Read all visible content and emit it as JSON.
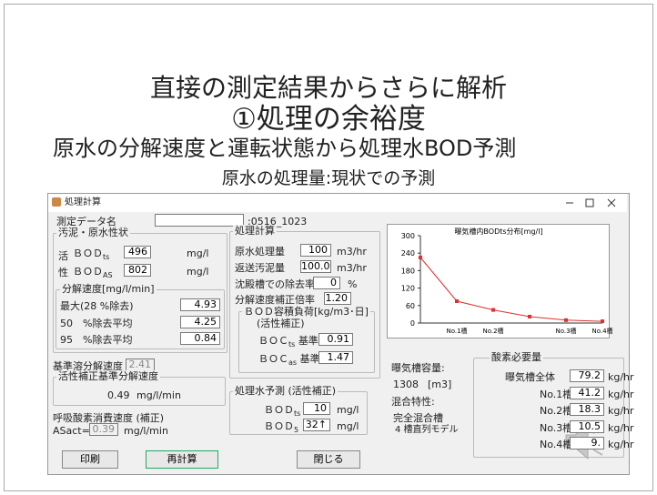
{
  "slide": {
    "title1": "直接の測定結果からさらに解析",
    "title2": "①処理の余裕度",
    "subtitle": "原水の分解速度と運転状態から処理水BOD予測",
    "caption": "原水の処理量:現状での予測"
  },
  "window": {
    "title": "処理計算",
    "data_name": {
      "label": "測定データ名",
      "value": ":0516_1023"
    },
    "sludge": {
      "title": "汚泥・原水性状",
      "side1": "活",
      "side2": "性",
      "rows": [
        {
          "main": "ＢＯＤ",
          "sub": "ts",
          "value": "496",
          "unit": "mg/l"
        },
        {
          "main": "ＢＯＤ",
          "sub": "AS",
          "value": "802",
          "unit": "mg/l"
        }
      ],
      "rate": {
        "title": "分解速度[mg/l/min]",
        "rows": [
          {
            "label": "最大(28 %除去)",
            "value": "4.93"
          },
          {
            "label": "50　%除去平均",
            "value": "4.25"
          },
          {
            "label": "95　%除去平均",
            "value": "0.84"
          }
        ]
      }
    },
    "base_rate": {
      "label": "基準溶分解速度",
      "value": "2.41"
    },
    "active_rate": {
      "title": "活性補正基準分解速度",
      "value": "0.49",
      "unit": "mg/l/min"
    },
    "oxygen_rate": {
      "label": "呼吸酸素消費速度 (補正)",
      "key": "ASact=",
      "value": "0.39",
      "unit": "mg/l/min"
    },
    "calc": {
      "title": "処理計算",
      "rows": [
        {
          "label": "原水処理量",
          "value": "100",
          "unit": "m3/hr"
        },
        {
          "label": "返送汚泥量",
          "value": "100.0",
          "unit": "m3/hr"
        },
        {
          "label": "沈殿槽での除去率",
          "value": "0",
          "unit": "%"
        },
        {
          "label": "分解速度補正倍率",
          "value": "1.20"
        }
      ],
      "load": {
        "title": "ＢＯＤ容積負荷[kg/m3･日]",
        "note": "(活性補正)",
        "rows": [
          {
            "main": "ＢＯＣ",
            "sub": "ts",
            "tail": "基準",
            "value": "0.91"
          },
          {
            "main": "ＢＯＣ",
            "sub": "as",
            "tail": "基準",
            "value": "1.47"
          }
        ]
      }
    },
    "predict": {
      "title": "処理水予測 (活性補正)",
      "rows": [
        {
          "main": "ＢＯＤ",
          "sub": "ts",
          "value": "10",
          "unit": "mg/l"
        },
        {
          "main": "ＢＯＤ",
          "sub": "5",
          "value": "32↑",
          "unit": "mg/l"
        }
      ]
    },
    "chart": {
      "type": "line",
      "title": "曝気槽内BODts分布[mg/l]",
      "categories": [
        null,
        "No.1槽",
        "No.2槽",
        null,
        "No.3槽",
        "No.4槽"
      ],
      "values": [
        225,
        75,
        45,
        22,
        10,
        6
      ],
      "color": "#e03030",
      "ylim": [
        0,
        300
      ],
      "yticks": [
        0,
        60,
        120,
        180,
        240,
        300
      ]
    },
    "tank": {
      "label": "曝気槽容量:",
      "value": "1308",
      "unit": "[m3]"
    },
    "mixing": {
      "label": "混合特性:",
      "line1": "完全混合槽",
      "line2": "4 槽直列モデル"
    },
    "oxygen": {
      "title": "酸素必要量",
      "rows": [
        {
          "label": "曝気槽全体",
          "value": "79.2",
          "unit": "kg/hr"
        },
        {
          "label": "No.1槽",
          "value": "41.2",
          "unit": "kg/hr"
        },
        {
          "label": "No.2槽",
          "value": "18.3",
          "unit": "kg/hr"
        },
        {
          "label": "No.3槽",
          "value": "10.5",
          "unit": "kg/hr"
        },
        {
          "label": "No.4槽",
          "value": "9.",
          "unit": "kg/hr"
        }
      ]
    },
    "buttons": [
      "印刷",
      "再計算",
      "閉じる"
    ]
  }
}
